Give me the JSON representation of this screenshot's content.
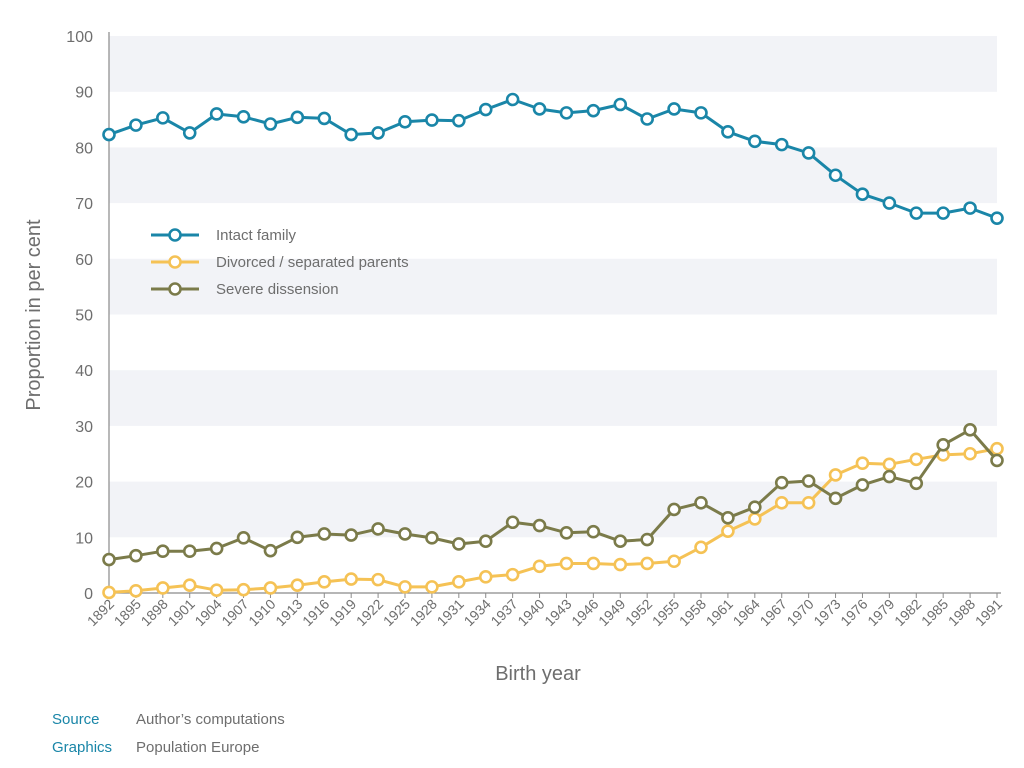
{
  "chart_data": {
    "type": "line",
    "xlabel": "Birth year",
    "ylabel": "Proportion in per cent",
    "ylim": [
      0,
      100
    ],
    "yticks": [
      0,
      10,
      20,
      30,
      40,
      50,
      60,
      70,
      80,
      90,
      100
    ],
    "grid": "alternating horizontal bands",
    "legend_position": "left-middle",
    "x": [
      1892,
      1895,
      1898,
      1901,
      1904,
      1907,
      1910,
      1913,
      1916,
      1919,
      1922,
      1925,
      1928,
      1931,
      1934,
      1937,
      1940,
      1943,
      1946,
      1949,
      1952,
      1955,
      1958,
      1961,
      1964,
      1967,
      1970,
      1973,
      1976,
      1979,
      1982,
      1985,
      1988,
      1991
    ],
    "series": [
      {
        "name": "Intact family",
        "color": "#1a86a8",
        "values": [
          82.3,
          84,
          85.3,
          82.6,
          86,
          85.5,
          84.2,
          85.4,
          85.2,
          82.3,
          82.6,
          84.6,
          84.9,
          84.8,
          86.8,
          88.6,
          86.9,
          86.2,
          86.6,
          87.7,
          85.1,
          86.9,
          86.2,
          82.8,
          81.1,
          80.5,
          79,
          75,
          71.6,
          70,
          68.2,
          68.2,
          69.1,
          67.3
        ]
      },
      {
        "name": "Divorced / separated parents",
        "color": "#f5c255",
        "values": [
          0.1,
          0.4,
          0.9,
          1.4,
          0.5,
          0.6,
          0.9,
          1.4,
          2,
          2.5,
          2.4,
          1.1,
          1.1,
          2,
          2.9,
          3.3,
          4.8,
          5.3,
          5.3,
          5.1,
          5.3,
          5.7,
          8.2,
          11.1,
          13.3,
          16.2,
          16.2,
          21.2,
          23.3,
          23.1,
          24,
          24.8,
          25,
          25.9
        ]
      },
      {
        "name": "Severe dissension",
        "color": "#7b7b4a",
        "values": [
          6,
          6.7,
          7.5,
          7.5,
          8,
          9.9,
          7.6,
          10,
          10.6,
          10.4,
          11.5,
          10.6,
          9.9,
          8.8,
          9.3,
          12.7,
          12.1,
          10.8,
          11,
          9.3,
          9.6,
          15,
          16.2,
          13.5,
          15.4,
          19.8,
          20.1,
          17,
          19.4,
          20.9,
          19.7,
          26.6,
          29.3,
          23.8
        ]
      }
    ]
  },
  "footer": {
    "source_label": "Source",
    "source_value": "Author’s computations",
    "graphics_label": "Graphics",
    "graphics_value": "Population Europe"
  }
}
